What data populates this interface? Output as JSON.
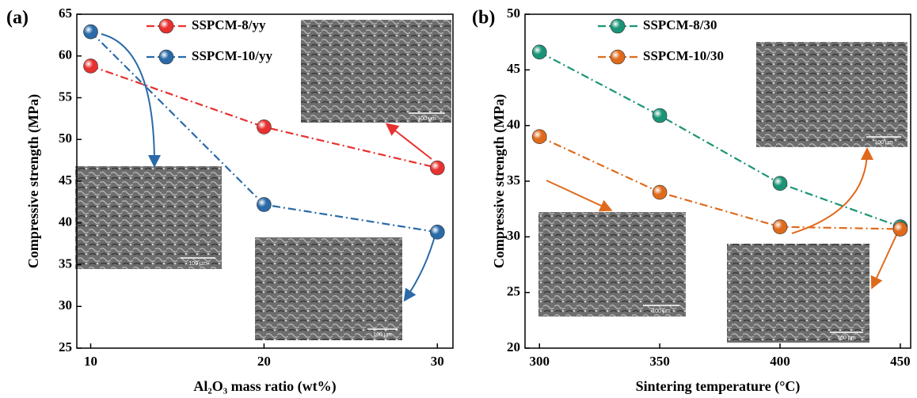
{
  "chart_data": [
    {
      "type": "line",
      "panel_label": "(a)",
      "x_label": "Al₂O₃ mass ratio (wt%)",
      "y_label": "Compressive strength (MPa)",
      "x": [
        10,
        20,
        30
      ],
      "xlim": [
        9.2,
        30.9
      ],
      "xticks": [
        10,
        20,
        30
      ],
      "ylim": [
        25,
        65
      ],
      "yticks": [
        25,
        30,
        35,
        40,
        45,
        50,
        55,
        60,
        65
      ],
      "scale_bar": "100 μm",
      "series": [
        {
          "name": "SSPCM-8/yy",
          "color": "#e8312f",
          "values": [
            58.8,
            51.5,
            46.6
          ]
        },
        {
          "name": "SSPCM-10/yy",
          "color": "#2a6aa8",
          "values": [
            62.9,
            42.2,
            38.9
          ]
        }
      ]
    },
    {
      "type": "line",
      "panel_label": "(b)",
      "x_label": "Sintering temperature (°C)",
      "y_label": "Compressive strength (MPa)",
      "x": [
        300,
        350,
        400,
        450
      ],
      "xlim": [
        294,
        454.3
      ],
      "xticks": [
        300,
        350,
        400,
        450
      ],
      "ylim": [
        20,
        50
      ],
      "yticks": [
        20,
        25,
        30,
        35,
        40,
        45,
        50
      ],
      "scale_bar": "100 μm",
      "series": [
        {
          "name": "SSPCM-8/30",
          "color": "#1a9476",
          "values": [
            46.6,
            40.9,
            34.8,
            30.9
          ]
        },
        {
          "name": "SSPCM-10/30",
          "color": "#e06a1c",
          "values": [
            39.0,
            34.0,
            30.9,
            30.7
          ]
        }
      ]
    }
  ]
}
